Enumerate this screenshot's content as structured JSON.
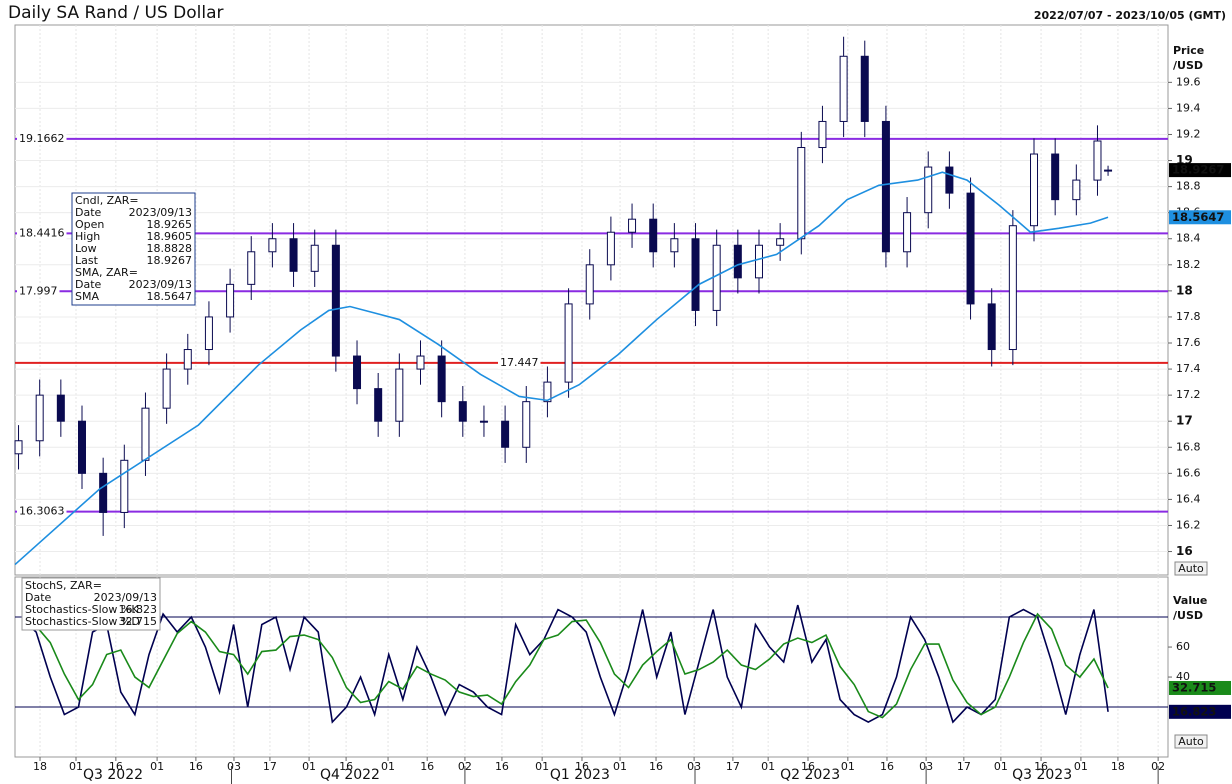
{
  "chart_data": [
    {
      "type": "candlestick",
      "title": "Daily SA Rand / US Dollar",
      "subtitle": "2022/07/07 - 2023/10/05 (GMT)",
      "ylabel": [
        "Price",
        "/USD"
      ],
      "auto_button": "Auto",
      "grid": true,
      "xlim": [
        0,
        327
      ],
      "ylim": [
        15.82,
        20.04
      ],
      "yticks": [
        16,
        16.2,
        16.4,
        16.6,
        16.8,
        17,
        17.2,
        17.4,
        17.6,
        17.8,
        18,
        18.2,
        18.4,
        18.6,
        18.8,
        19,
        19.2,
        19.4,
        19.6
      ],
      "info_date": "2023/09/13",
      "info_labels": {
        "date": "Date",
        "open": "Open",
        "high": "High",
        "low": "Low",
        "close": "Last",
        "sma": "SMA"
      },
      "candles": {
        "name": "Cndl, ZAR=",
        "color": "#0a0a50",
        "x": [
          1,
          7,
          13,
          19,
          25,
          31,
          37,
          43,
          49,
          55,
          61,
          67,
          73,
          79,
          85,
          91,
          97,
          103,
          109,
          115,
          121,
          127,
          133,
          139,
          145,
          151,
          157,
          163,
          169,
          175,
          181,
          187,
          193,
          199,
          205,
          211,
          217,
          223,
          229,
          235,
          241,
          247,
          253,
          259,
          265,
          271,
          277,
          283,
          289,
          295,
          301,
          307,
          310
        ],
        "open": [
          16.75,
          16.85,
          17.2,
          17.0,
          16.6,
          16.3,
          16.7,
          17.1,
          17.4,
          17.55,
          17.8,
          18.05,
          18.3,
          18.4,
          18.15,
          18.35,
          17.5,
          17.25,
          17.0,
          17.4,
          17.5,
          17.15,
          17.0,
          17.0,
          16.8,
          17.15,
          17.3,
          17.9,
          18.2,
          18.45,
          18.55,
          18.3,
          18.4,
          17.85,
          18.35,
          18.1,
          18.35,
          18.4,
          19.1,
          19.3,
          19.8,
          19.3,
          18.3,
          18.6,
          18.95,
          18.75,
          17.9,
          17.55,
          18.5,
          19.05,
          18.7,
          18.85,
          18.9265
        ],
        "high": [
          16.97,
          17.32,
          17.32,
          17.12,
          16.72,
          16.82,
          17.22,
          17.52,
          17.67,
          17.92,
          18.17,
          18.42,
          18.52,
          18.52,
          18.47,
          18.47,
          17.62,
          17.37,
          17.52,
          17.62,
          17.62,
          17.27,
          17.12,
          17.12,
          17.27,
          17.42,
          18.02,
          18.32,
          18.57,
          18.67,
          18.67,
          18.52,
          18.52,
          18.47,
          18.47,
          18.47,
          18.52,
          19.22,
          19.42,
          19.95,
          19.92,
          19.42,
          18.72,
          19.07,
          19.07,
          18.87,
          18.02,
          18.62,
          19.17,
          19.17,
          18.97,
          19.27,
          18.9605
        ],
        "low": [
          16.63,
          16.73,
          16.88,
          16.48,
          16.12,
          16.18,
          16.58,
          16.98,
          17.28,
          17.43,
          17.68,
          17.93,
          18.18,
          18.03,
          18.03,
          17.38,
          17.13,
          16.88,
          16.88,
          17.28,
          17.03,
          16.88,
          16.88,
          16.68,
          16.68,
          17.03,
          17.18,
          17.78,
          18.08,
          18.33,
          18.18,
          18.18,
          17.73,
          17.73,
          17.98,
          17.98,
          18.23,
          18.28,
          18.98,
          19.18,
          19.18,
          18.18,
          18.18,
          18.48,
          18.63,
          17.78,
          17.42,
          17.43,
          18.38,
          18.58,
          18.58,
          18.73,
          18.8828
        ],
        "close": [
          16.85,
          17.2,
          17.0,
          16.6,
          16.3,
          16.7,
          17.1,
          17.4,
          17.55,
          17.8,
          18.05,
          18.3,
          18.4,
          18.15,
          18.35,
          17.5,
          17.25,
          17.0,
          17.4,
          17.5,
          17.15,
          17.0,
          17.0,
          16.8,
          17.15,
          17.3,
          17.9,
          18.2,
          18.45,
          18.55,
          18.3,
          18.4,
          17.85,
          18.35,
          18.1,
          18.35,
          18.4,
          19.1,
          19.3,
          19.8,
          19.3,
          18.3,
          18.6,
          18.95,
          18.75,
          17.9,
          17.55,
          18.5,
          19.05,
          18.7,
          18.85,
          19.15,
          18.9267
        ]
      },
      "sma": {
        "name": "SMA, ZAR=",
        "color": "#1e8fe0",
        "x": [
          0,
          24,
          52,
          69,
          81,
          89,
          95,
          109,
          120,
          132,
          143,
          151,
          160,
          171,
          182,
          194,
          205,
          216,
          228,
          236,
          245,
          256,
          263,
          270,
          279,
          288,
          296,
          305,
          310
        ],
        "values": [
          15.9,
          16.48,
          16.97,
          17.43,
          17.7,
          17.85,
          17.88,
          17.78,
          17.59,
          17.36,
          17.19,
          17.16,
          17.28,
          17.51,
          17.78,
          18.05,
          18.2,
          18.28,
          18.5,
          18.7,
          18.81,
          18.85,
          18.91,
          18.85,
          18.66,
          18.45,
          18.48,
          18.52,
          18.5647
        ]
      },
      "levels": [
        {
          "value": 19.1662,
          "color": "#8a2be2"
        },
        {
          "value": 18.4416,
          "color": "#8a2be2"
        },
        {
          "value": 17.997,
          "color": "#8a2be2"
        },
        {
          "value": 16.3063,
          "color": "#8a2be2"
        },
        {
          "value": 17.4473,
          "label": "17.447",
          "color": "#e02020",
          "label_position": "center"
        }
      ]
    },
    {
      "type": "line",
      "info_title": "StochS, ZAR=",
      "ylabel": [
        "Value",
        "/USD"
      ],
      "auto_button": "Auto",
      "grid": true,
      "xlim": [
        0,
        327
      ],
      "ylim": [
        -13.3,
        106.7
      ],
      "yticks": [
        40,
        60
      ],
      "levels": [
        80,
        20
      ],
      "xticks": [
        {
          "value": 7.1,
          "label": "18"
        },
        {
          "value": 17.3,
          "label": "01"
        },
        {
          "value": 28.6,
          "label": "16"
        },
        {
          "value": 40.3,
          "label": "01"
        },
        {
          "value": 51.3,
          "label": "16"
        },
        {
          "value": 62.1,
          "label": "03"
        },
        {
          "value": 72.3,
          "label": "17"
        },
        {
          "value": 83.4,
          "label": "01"
        },
        {
          "value": 93.9,
          "label": "16"
        },
        {
          "value": 105.8,
          "label": "01"
        },
        {
          "value": 116.9,
          "label": "16"
        },
        {
          "value": 127.6,
          "label": "02"
        },
        {
          "value": 138.1,
          "label": "16"
        },
        {
          "value": 149.5,
          "label": "01"
        },
        {
          "value": 160.8,
          "label": "16"
        },
        {
          "value": 171.6,
          "label": "01"
        },
        {
          "value": 181.8,
          "label": "16"
        },
        {
          "value": 192.6,
          "label": "03"
        },
        {
          "value": 203.6,
          "label": "17"
        },
        {
          "value": 213.6,
          "label": "01"
        },
        {
          "value": 224.9,
          "label": "16"
        },
        {
          "value": 236.2,
          "label": "01"
        },
        {
          "value": 247.3,
          "label": "16"
        },
        {
          "value": 258.4,
          "label": "03"
        },
        {
          "value": 269.1,
          "label": "17"
        },
        {
          "value": 279.6,
          "label": "01"
        },
        {
          "value": 291.0,
          "label": "16"
        },
        {
          "value": 302.3,
          "label": "01"
        },
        {
          "value": 312.8,
          "label": "18"
        },
        {
          "value": 324.2,
          "label": "02"
        }
      ],
      "quarters": [
        {
          "value": 27.8,
          "label": "Q3 2022"
        },
        {
          "value": 95,
          "label": "Q4 2022"
        },
        {
          "value": 160.2,
          "label": "Q1 2023"
        },
        {
          "value": 225.5,
          "label": "Q2 2023"
        },
        {
          "value": 291.3,
          "label": "Q3 2023"
        }
      ],
      "x": [
        2,
        6,
        10,
        14,
        18,
        22,
        26,
        30,
        34,
        38,
        42,
        46,
        50,
        54,
        58,
        62,
        66,
        70,
        74,
        78,
        82,
        86,
        90,
        94,
        98,
        102,
        106,
        110,
        114,
        118,
        122,
        126,
        130,
        134,
        138,
        142,
        146,
        150,
        154,
        158,
        162,
        166,
        170,
        174,
        178,
        182,
        186,
        190,
        194,
        198,
        202,
        206,
        210,
        214,
        218,
        222,
        226,
        230,
        234,
        238,
        242,
        246,
        250,
        254,
        258,
        262,
        266,
        270,
        274,
        278,
        282,
        286,
        290,
        294,
        298,
        302,
        306,
        310
      ],
      "series": [
        {
          "name": "Stochastics-Slow %K",
          "color": "#000050",
          "values": [
            78,
            70,
            40,
            15,
            20,
            70,
            75,
            30,
            15,
            55,
            82,
            70,
            80,
            60,
            30,
            75,
            20,
            75,
            80,
            45,
            80,
            70,
            10,
            20,
            40,
            15,
            55,
            25,
            60,
            40,
            15,
            35,
            30,
            20,
            15,
            75,
            55,
            65,
            85,
            80,
            70,
            40,
            15,
            45,
            85,
            40,
            70,
            15,
            50,
            85,
            40,
            20,
            75,
            60,
            50,
            88,
            50,
            65,
            25,
            15,
            10,
            15,
            40,
            80,
            65,
            40,
            10,
            20,
            15,
            25,
            80,
            85,
            80,
            50,
            15,
            55,
            85,
            16.823
          ]
        },
        {
          "name": "Stochastics-Slow %D",
          "color": "#1a8a1a",
          "values": [
            78,
            74,
            63,
            42,
            25,
            35,
            55,
            58,
            40,
            33,
            51,
            69,
            77,
            70,
            57,
            55,
            42,
            57,
            58,
            67,
            68,
            65,
            53,
            33,
            23,
            25,
            37,
            32,
            47,
            42,
            38,
            30,
            27,
            28,
            22,
            37,
            48,
            65,
            68,
            77,
            78,
            63,
            42,
            33,
            48,
            57,
            65,
            42,
            45,
            50,
            58,
            48,
            45,
            52,
            62,
            66,
            63,
            68,
            47,
            35,
            17,
            13,
            22,
            45,
            62,
            62,
            38,
            23,
            15,
            20,
            40,
            63,
            82,
            72,
            48,
            40,
            52,
            32.715
          ]
        }
      ]
    }
  ]
}
